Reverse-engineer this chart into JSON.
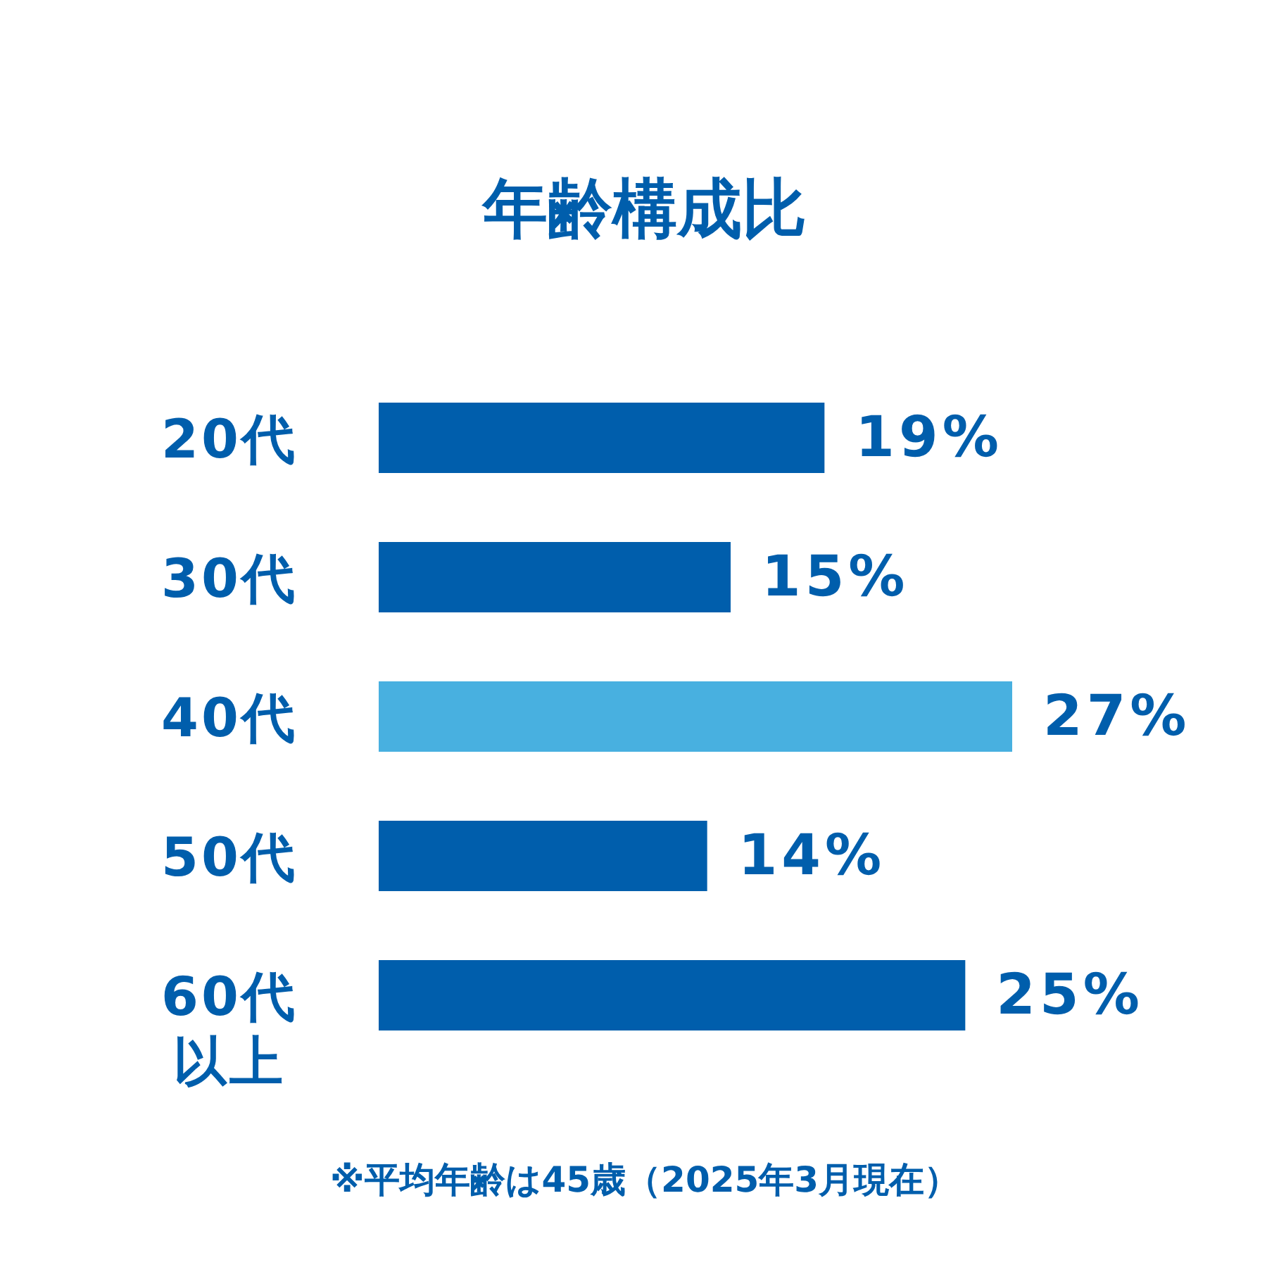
{
  "chart_data": {
    "type": "bar",
    "orientation": "horizontal",
    "title": "年齢構成比",
    "categories": [
      "20代",
      "30代",
      "40代",
      "50代",
      "60代以上"
    ],
    "values": [
      19,
      15,
      27,
      14,
      25
    ],
    "colors": [
      "#005eac",
      "#005eac",
      "#48b0e0",
      "#005eac",
      "#005eac"
    ],
    "value_labels": [
      "19%",
      "15%",
      "27%",
      "14%",
      "25%"
    ],
    "annotations": [
      "※平均年齢は45歳（2025年3月現在）"
    ]
  }
}
